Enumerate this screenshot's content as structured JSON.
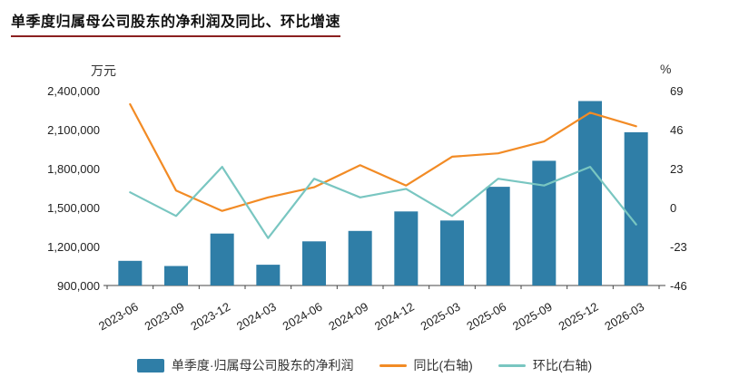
{
  "title": "单季度归属母公司股东的净利润及同比、环比增速",
  "unit_left": "万元",
  "unit_right": "%",
  "colors": {
    "bar": "#2f7ea7",
    "yoy": "#f28b25",
    "qoq": "#79c6c1",
    "axis": "#444444",
    "title_underline": "#8b1f1f"
  },
  "chart_data": {
    "type": "bar",
    "title": "单季度归属母公司股东的净利润及同比、环比增速",
    "xlabel": "",
    "ylabel_left": "万元",
    "ylabel_right": "%",
    "grid": false,
    "legend_position": "bottom",
    "categories": [
      "2023-06",
      "2023-09",
      "2023-12",
      "2024-03",
      "2024-06",
      "2024-09",
      "2024-12",
      "2025-03",
      "2025-06",
      "2025-09",
      "2025-12",
      "2026-03"
    ],
    "series": [
      {
        "name": "单季度·归属母公司股东的净利润",
        "type": "bar",
        "axis": "left",
        "values": [
          1090000,
          1050000,
          1300000,
          1060000,
          1240000,
          1320000,
          1470000,
          1400000,
          1660000,
          1860000,
          2320000,
          2080000
        ]
      },
      {
        "name": "同比(右轴)",
        "type": "line",
        "axis": "right",
        "values": [
          61,
          10,
          -2,
          6,
          12,
          25,
          13,
          30,
          32,
          39,
          56,
          48
        ]
      },
      {
        "name": "环比(右轴)",
        "type": "line",
        "axis": "right",
        "values": [
          9,
          -5,
          24,
          -18,
          17,
          6,
          11,
          -5,
          17,
          13,
          24,
          -10
        ]
      }
    ],
    "left_axis": {
      "min": 900000,
      "max": 2400000,
      "ticks": [
        900000,
        1200000,
        1500000,
        1800000,
        2100000,
        2400000
      ]
    },
    "right_axis": {
      "min": -46,
      "max": 69,
      "ticks": [
        -46,
        -23,
        0,
        23,
        46,
        69
      ]
    }
  }
}
